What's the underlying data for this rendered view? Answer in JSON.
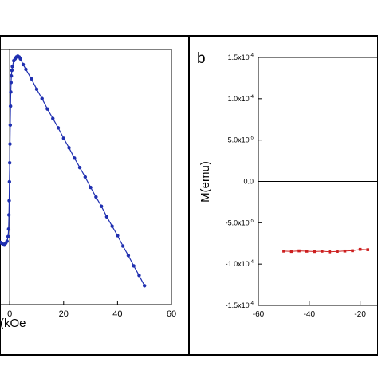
{
  "chart_data": [
    {
      "type": "scatter",
      "panel_label": "",
      "xlabel": "(kOe",
      "ylabel": "",
      "xlim": [
        -3.6,
        60
      ],
      "ylim": [
        -1.7,
        1.0
      ],
      "xticks": [
        {
          "value": 0,
          "label": "0"
        },
        {
          "value": 20,
          "label": "20"
        },
        {
          "value": 40,
          "label": "40"
        },
        {
          "value": 60,
          "label": "60"
        }
      ],
      "yticks": [],
      "reference_lines": {
        "x": 0,
        "y": 0
      },
      "series": [
        {
          "name": "",
          "color": "#1f2fb0",
          "marker": "circle",
          "points": [
            [
              -3.5,
              -1.04
            ],
            [
              -3.0,
              -1.05
            ],
            [
              -2.5,
              -1.06
            ],
            [
              -2.0,
              -1.07
            ],
            [
              -1.5,
              -1.05
            ],
            [
              -1.0,
              -1.03
            ],
            [
              -0.6,
              -0.98
            ],
            [
              -0.4,
              -0.9
            ],
            [
              -0.3,
              -0.75
            ],
            [
              -0.2,
              -0.6
            ],
            [
              -0.1,
              -0.4
            ],
            [
              0.0,
              -0.2
            ],
            [
              0.1,
              0.0
            ],
            [
              0.2,
              0.2
            ],
            [
              0.3,
              0.4
            ],
            [
              0.4,
              0.55
            ],
            [
              0.5,
              0.65
            ],
            [
              0.6,
              0.72
            ],
            [
              0.8,
              0.78
            ],
            [
              1.0,
              0.82
            ],
            [
              1.5,
              0.88
            ],
            [
              2.0,
              0.9
            ],
            [
              2.5,
              0.92
            ],
            [
              3.0,
              0.93
            ],
            [
              3.5,
              0.92
            ],
            [
              4.0,
              0.9
            ],
            [
              5.0,
              0.84
            ],
            [
              6.0,
              0.79
            ],
            [
              8.0,
              0.69
            ],
            [
              10.0,
              0.58
            ],
            [
              12.0,
              0.48
            ],
            [
              14.0,
              0.37
            ],
            [
              16.0,
              0.27
            ],
            [
              18.0,
              0.17
            ],
            [
              20.0,
              0.06
            ],
            [
              22.0,
              -0.04
            ],
            [
              24.0,
              -0.15
            ],
            [
              26.0,
              -0.25
            ],
            [
              28.0,
              -0.35
            ],
            [
              30.0,
              -0.46
            ],
            [
              32.0,
              -0.56
            ],
            [
              34.0,
              -0.66
            ],
            [
              36.0,
              -0.77
            ],
            [
              38.0,
              -0.87
            ],
            [
              40.0,
              -0.97
            ],
            [
              42.0,
              -1.08
            ],
            [
              44.0,
              -1.18
            ],
            [
              46.0,
              -1.29
            ],
            [
              48.0,
              -1.39
            ],
            [
              50.0,
              -1.5
            ]
          ]
        }
      ]
    },
    {
      "type": "line",
      "panel_label": "b",
      "xlabel": "",
      "ylabel": "M(emu)",
      "xlim": [
        -60,
        -13
      ],
      "ylim": [
        -0.00015,
        0.00015
      ],
      "xticks": [
        {
          "value": -60,
          "label": "-60"
        },
        {
          "value": -40,
          "label": "-40"
        },
        {
          "value": -20,
          "label": "-20"
        }
      ],
      "yticks": [
        {
          "value": 0.00015,
          "mantissa": "1.5x10",
          "exp": "-4"
        },
        {
          "value": 0.0001,
          "mantissa": "1.0x10",
          "exp": "-4"
        },
        {
          "value": 5e-05,
          "mantissa": "5.0x10",
          "exp": "-5"
        },
        {
          "value": 0,
          "mantissa": "0.0",
          "exp": ""
        },
        {
          "value": -5e-05,
          "mantissa": "-5.0x10",
          "exp": "-5"
        },
        {
          "value": -0.0001,
          "mantissa": "-1.0x10",
          "exp": "-4"
        },
        {
          "value": -0.00015,
          "mantissa": "-1.5x10",
          "exp": "-4"
        }
      ],
      "reference_lines": {
        "y": 0
      },
      "series": [
        {
          "name": "",
          "color": "#cc1f1f",
          "marker": "square",
          "points": [
            [
              -50,
              -8.43e-05
            ],
            [
              -47,
              -8.47e-05
            ],
            [
              -44,
              -8.4e-05
            ],
            [
              -41,
              -8.44e-05
            ],
            [
              -38,
              -8.48e-05
            ],
            [
              -35,
              -8.44e-05
            ],
            [
              -32,
              -8.52e-05
            ],
            [
              -29,
              -8.46e-05
            ],
            [
              -26,
              -8.42e-05
            ],
            [
              -23,
              -8.38e-05
            ],
            [
              -20,
              -8.22e-05
            ],
            [
              -17,
              -8.26e-05
            ]
          ]
        }
      ]
    }
  ]
}
